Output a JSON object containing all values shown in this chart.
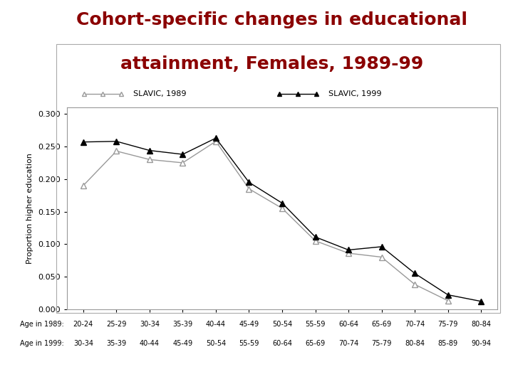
{
  "title_line1": "Cohort-specific changes in educational",
  "title_line2": "attainment, Females, 1989-99",
  "title_color": "#8B0000",
  "ylabel": "Proportion higher education",
  "x_labels_1989": [
    "20-24",
    "25-29",
    "30-34",
    "35-39",
    "40-44",
    "45-49",
    "50-54",
    "55-59",
    "60-64",
    "65-69",
    "70-74",
    "75-79",
    "80-84"
  ],
  "x_labels_1999": [
    "30-34",
    "35-39",
    "40-44",
    "45-49",
    "50-54",
    "55-59",
    "60-64",
    "65-69",
    "70-74",
    "75-79",
    "80-84",
    "85-89",
    "90-94"
  ],
  "slavic_1989": [
    0.19,
    0.243,
    0.23,
    0.225,
    0.258,
    0.185,
    0.155,
    0.105,
    0.086,
    0.08,
    0.038,
    0.013,
    null
  ],
  "slavic_1999": [
    0.257,
    0.258,
    0.244,
    0.238,
    0.263,
    0.195,
    0.163,
    0.111,
    0.091,
    0.096,
    0.055,
    0.022,
    0.012
  ],
  "ylim": [
    0.0,
    0.31
  ],
  "yticks": [
    0.0,
    0.05,
    0.1,
    0.15,
    0.2,
    0.25,
    0.3
  ],
  "legend_1989": "SLAVIC, 1989",
  "legend_1999": "SLAVIC, 1999",
  "background_color": "#ffffff",
  "chart_bg": "#ffffff",
  "border_color": "#999999",
  "line_color_1989": "#999999",
  "line_color_1999": "#000000",
  "title_fontsize": 18,
  "label_fontsize": 8,
  "axis_fontsize": 8,
  "tick_fontsize": 8
}
